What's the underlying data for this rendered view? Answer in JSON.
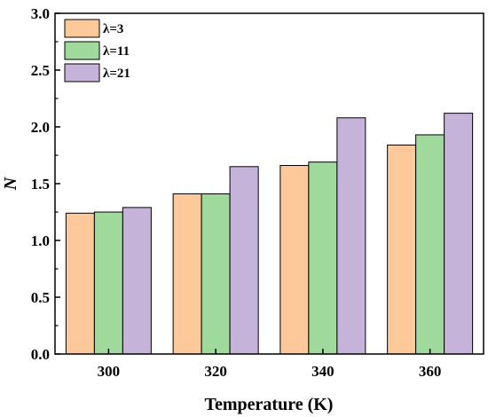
{
  "chart_data": {
    "type": "bar",
    "title": "",
    "xlabel": "Temperature (K)",
    "ylabel": "N",
    "categories": [
      "300",
      "320",
      "340",
      "360"
    ],
    "series": [
      {
        "name": "λ=3",
        "color": "#fdc99b",
        "values": [
          1.24,
          1.41,
          1.66,
          1.84
        ]
      },
      {
        "name": "λ=11",
        "color": "#9fd99b",
        "values": [
          1.25,
          1.41,
          1.69,
          1.93
        ]
      },
      {
        "name": "λ=21",
        "color": "#c5b3d9",
        "values": [
          1.29,
          1.65,
          2.08,
          2.12
        ]
      }
    ],
    "ylim": [
      0,
      3.0
    ],
    "yticks": [
      "0.0",
      "0.5",
      "1.0",
      "1.5",
      "2.0",
      "2.5",
      "3.0"
    ],
    "grid": false,
    "legend_position": "top-left"
  }
}
